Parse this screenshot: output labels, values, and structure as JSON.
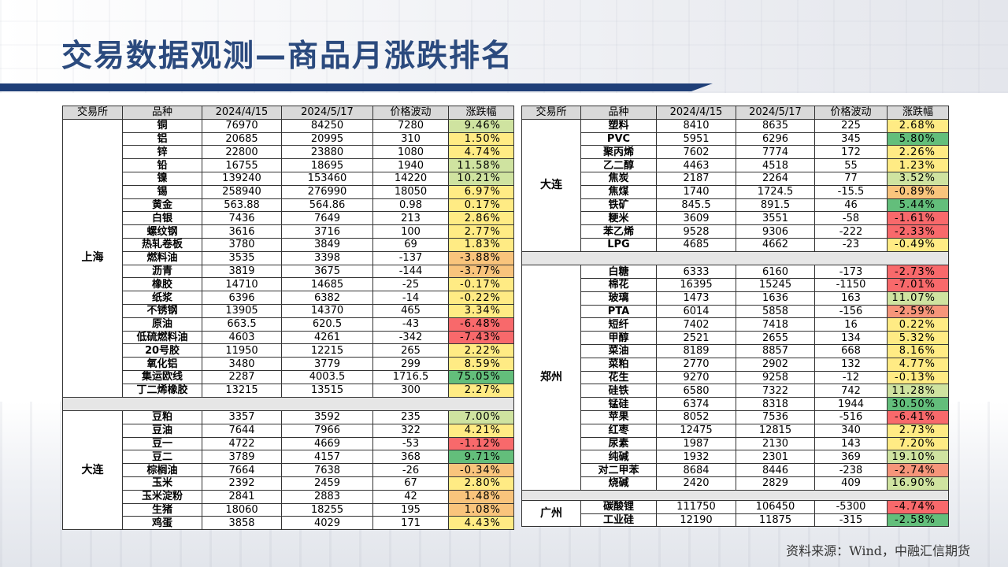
{
  "title": "交易数据观测—商品月涨跌排名",
  "source": "资料来源：Wind，中融汇信期货",
  "headers": [
    "交易所",
    "品种",
    "2024/4/15",
    "2024/5/17",
    "价格波动",
    "涨跌幅"
  ],
  "colors": {
    "green": "#63be7b",
    "lightgreen": "#cfe3a0",
    "yellow": "#ffeb84",
    "orange": "#f9c47c",
    "salmon": "#f6957a",
    "red": "#f8696b",
    "header": "#d9d9d9",
    "title": "#2b4a7e",
    "bar": "#1f3f78"
  },
  "left": {
    "groups": [
      {
        "exchange": "上海",
        "rows": [
          {
            "name": "铜",
            "a": "76970",
            "b": "84250",
            "d": "7280",
            "p": "9.46%",
            "c": "lightgreen"
          },
          {
            "name": "铝",
            "a": "20685",
            "b": "20995",
            "d": "310",
            "p": "1.50%",
            "c": "yellow"
          },
          {
            "name": "锌",
            "a": "22800",
            "b": "23880",
            "d": "1080",
            "p": "4.74%",
            "c": "yellow"
          },
          {
            "name": "铅",
            "a": "16755",
            "b": "18695",
            "d": "1940",
            "p": "11.58%",
            "c": "lightgreen"
          },
          {
            "name": "镍",
            "a": "139240",
            "b": "153460",
            "d": "14220",
            "p": "10.21%",
            "c": "lightgreen"
          },
          {
            "name": "锡",
            "a": "258940",
            "b": "276990",
            "d": "18050",
            "p": "6.97%",
            "c": "yellow"
          },
          {
            "name": "黄金",
            "a": "563.88",
            "b": "564.86",
            "d": "0.98",
            "p": "0.17%",
            "c": "yellow"
          },
          {
            "name": "白银",
            "a": "7436",
            "b": "7649",
            "d": "213",
            "p": "2.86%",
            "c": "yellow"
          },
          {
            "name": "螺纹钢",
            "a": "3616",
            "b": "3716",
            "d": "100",
            "p": "2.77%",
            "c": "yellow"
          },
          {
            "name": "热轧卷板",
            "a": "3780",
            "b": "3849",
            "d": "69",
            "p": "1.83%",
            "c": "yellow"
          },
          {
            "name": "燃料油",
            "a": "3535",
            "b": "3398",
            "d": "-137",
            "p": "-3.88%",
            "c": "orange"
          },
          {
            "name": "沥青",
            "a": "3819",
            "b": "3675",
            "d": "-144",
            "p": "-3.77%",
            "c": "orange"
          },
          {
            "name": "橡胶",
            "a": "14710",
            "b": "14685",
            "d": "-25",
            "p": "-0.17%",
            "c": "yellow"
          },
          {
            "name": "纸浆",
            "a": "6396",
            "b": "6382",
            "d": "-14",
            "p": "-0.22%",
            "c": "yellow"
          },
          {
            "name": "不锈钢",
            "a": "13905",
            "b": "14370",
            "d": "465",
            "p": "3.34%",
            "c": "yellow"
          },
          {
            "name": "原油",
            "a": "663.5",
            "b": "620.5",
            "d": "-43",
            "p": "-6.48%",
            "c": "red"
          },
          {
            "name": "低硫燃料油",
            "a": "4603",
            "b": "4261",
            "d": "-342",
            "p": "-7.43%",
            "c": "red"
          },
          {
            "name": "20号胶",
            "a": "11950",
            "b": "12215",
            "d": "265",
            "p": "2.22%",
            "c": "yellow"
          },
          {
            "name": "氧化铝",
            "a": "3480",
            "b": "3779",
            "d": "299",
            "p": "8.59%",
            "c": "yellow"
          },
          {
            "name": "集运欧线",
            "a": "2287",
            "b": "4003.5",
            "d": "1716.5",
            "p": "75.05%",
            "c": "green"
          },
          {
            "name": "丁二烯橡胶",
            "a": "13215",
            "b": "13515",
            "d": "300",
            "p": "2.27%",
            "c": "yellow"
          }
        ]
      },
      {
        "exchange": "大连",
        "rows": [
          {
            "name": "豆粕",
            "a": "3357",
            "b": "3592",
            "d": "235",
            "p": "7.00%",
            "c": "lightgreen"
          },
          {
            "name": "豆油",
            "a": "7644",
            "b": "7966",
            "d": "322",
            "p": "4.21%",
            "c": "yellow"
          },
          {
            "name": "豆一",
            "a": "4722",
            "b": "4669",
            "d": "-53",
            "p": "-1.12%",
            "c": "red"
          },
          {
            "name": "豆二",
            "a": "3789",
            "b": "4157",
            "d": "368",
            "p": "9.71%",
            "c": "green"
          },
          {
            "name": "棕榈油",
            "a": "7664",
            "b": "7638",
            "d": "-26",
            "p": "-0.34%",
            "c": "orange"
          },
          {
            "name": "玉米",
            "a": "2392",
            "b": "2459",
            "d": "67",
            "p": "2.80%",
            "c": "yellow"
          },
          {
            "name": "玉米淀粉",
            "a": "2841",
            "b": "2883",
            "d": "42",
            "p": "1.48%",
            "c": "orange"
          },
          {
            "name": "生猪",
            "a": "18060",
            "b": "18255",
            "d": "195",
            "p": "1.08%",
            "c": "orange"
          },
          {
            "name": "鸡蛋",
            "a": "3858",
            "b": "4029",
            "d": "171",
            "p": "4.43%",
            "c": "yellow"
          }
        ]
      }
    ]
  },
  "right": {
    "groups": [
      {
        "exchange": "大连",
        "rows": [
          {
            "name": "塑料",
            "a": "8410",
            "b": "8635",
            "d": "225",
            "p": "2.68%",
            "c": "yellow"
          },
          {
            "name": "PVC",
            "a": "5951",
            "b": "6296",
            "d": "345",
            "p": "5.80%",
            "c": "green"
          },
          {
            "name": "聚丙烯",
            "a": "7602",
            "b": "7774",
            "d": "172",
            "p": "2.26%",
            "c": "yellow"
          },
          {
            "name": "乙二醇",
            "a": "4463",
            "b": "4518",
            "d": "55",
            "p": "1.23%",
            "c": "yellow"
          },
          {
            "name": "焦炭",
            "a": "2187",
            "b": "2264",
            "d": "77",
            "p": "3.52%",
            "c": "lightgreen"
          },
          {
            "name": "焦煤",
            "a": "1740",
            "b": "1724.5",
            "d": "-15.5",
            "p": "-0.89%",
            "c": "orange"
          },
          {
            "name": "铁矿",
            "a": "845.5",
            "b": "891.5",
            "d": "46",
            "p": "5.44%",
            "c": "green"
          },
          {
            "name": "粳米",
            "a": "3609",
            "b": "3551",
            "d": "-58",
            "p": "-1.61%",
            "c": "red"
          },
          {
            "name": "苯乙烯",
            "a": "9528",
            "b": "9306",
            "d": "-222",
            "p": "-2.33%",
            "c": "red"
          },
          {
            "name": "LPG",
            "a": "4685",
            "b": "4662",
            "d": "-23",
            "p": "-0.49%",
            "c": "yellow"
          }
        ]
      },
      {
        "exchange": "郑州",
        "rows": [
          {
            "name": "白糖",
            "a": "6333",
            "b": "6160",
            "d": "-173",
            "p": "-2.73%",
            "c": "red"
          },
          {
            "name": "棉花",
            "a": "16395",
            "b": "15245",
            "d": "-1150",
            "p": "-7.01%",
            "c": "red"
          },
          {
            "name": "玻璃",
            "a": "1473",
            "b": "1636",
            "d": "163",
            "p": "11.07%",
            "c": "lightgreen"
          },
          {
            "name": "PTA",
            "a": "6014",
            "b": "5858",
            "d": "-156",
            "p": "-2.59%",
            "c": "salmon"
          },
          {
            "name": "短纤",
            "a": "7402",
            "b": "7418",
            "d": "16",
            "p": "0.22%",
            "c": "yellow"
          },
          {
            "name": "甲醇",
            "a": "2521",
            "b": "2655",
            "d": "134",
            "p": "5.32%",
            "c": "yellow"
          },
          {
            "name": "菜油",
            "a": "8189",
            "b": "8857",
            "d": "668",
            "p": "8.16%",
            "c": "yellow"
          },
          {
            "name": "菜粕",
            "a": "2770",
            "b": "2902",
            "d": "132",
            "p": "4.77%",
            "c": "yellow"
          },
          {
            "name": "花生",
            "a": "9270",
            "b": "9258",
            "d": "-12",
            "p": "-0.13%",
            "c": "yellow"
          },
          {
            "name": "硅铁",
            "a": "6580",
            "b": "7322",
            "d": "742",
            "p": "11.28%",
            "c": "lightgreen"
          },
          {
            "name": "锰硅",
            "a": "6374",
            "b": "8318",
            "d": "1944",
            "p": "30.50%",
            "c": "green"
          },
          {
            "name": "苹果",
            "a": "8052",
            "b": "7536",
            "d": "-516",
            "p": "-6.41%",
            "c": "red"
          },
          {
            "name": "红枣",
            "a": "12475",
            "b": "12815",
            "d": "340",
            "p": "2.73%",
            "c": "yellow"
          },
          {
            "name": "尿素",
            "a": "1987",
            "b": "2130",
            "d": "143",
            "p": "7.20%",
            "c": "yellow"
          },
          {
            "name": "纯碱",
            "a": "1932",
            "b": "2301",
            "d": "369",
            "p": "19.10%",
            "c": "lightgreen"
          },
          {
            "name": "对二甲苯",
            "a": "8684",
            "b": "8446",
            "d": "-238",
            "p": "-2.74%",
            "c": "salmon"
          },
          {
            "name": "烧碱",
            "a": "2420",
            "b": "2829",
            "d": "409",
            "p": "16.90%",
            "c": "lightgreen"
          }
        ]
      },
      {
        "exchange": "广州",
        "rows": [
          {
            "name": "碳酸锂",
            "a": "111750",
            "b": "106450",
            "d": "-5300",
            "p": "-4.74%",
            "c": "red"
          },
          {
            "name": "工业硅",
            "a": "12190",
            "b": "11875",
            "d": "-315",
            "p": "-2.58%",
            "c": "green"
          }
        ]
      }
    ]
  }
}
